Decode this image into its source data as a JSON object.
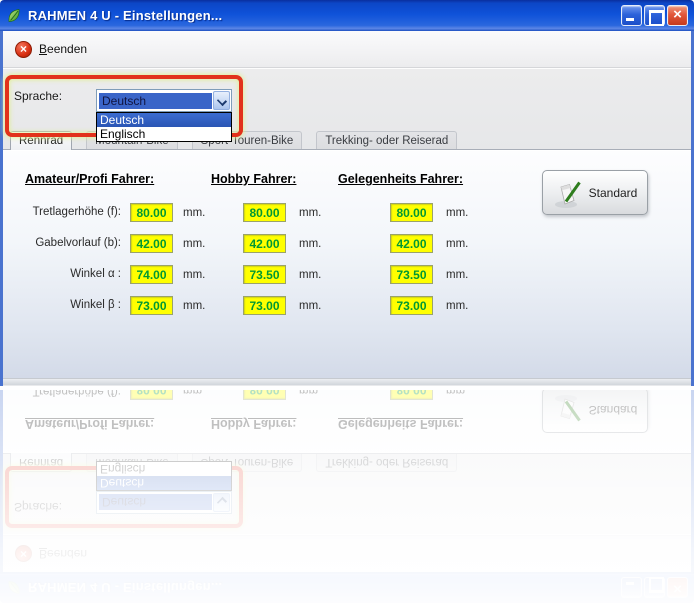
{
  "window": {
    "title": "RAHMEN 4 U - Einstellungen...",
    "controls": {
      "close_glyph": "×"
    }
  },
  "toolbar": {
    "quit_label": "Beenden",
    "quit_glyph": "×"
  },
  "language": {
    "label": "Sprache:",
    "selected": "Deutsch",
    "options": [
      {
        "label": "Deutsch",
        "highlighted": true
      },
      {
        "label": "Englisch",
        "highlighted": false
      }
    ]
  },
  "tabs": [
    {
      "label": "Rennrad",
      "active": true
    },
    {
      "label": "Mountain-Bike",
      "active": false
    },
    {
      "label": "Sport-Touren-Bike",
      "active": false
    },
    {
      "label": "Trekking- oder Reiserad",
      "active": false
    }
  ],
  "panel": {
    "columns": [
      "Amateur/Profi Fahrer:",
      "Hobby Fahrer:",
      "Gelegenheits Fahrer:"
    ],
    "rows": [
      {
        "label": "Tretlagerhöhe (f):",
        "values": [
          "80.00",
          "80.00",
          "80.00"
        ],
        "unit": "mm."
      },
      {
        "label": "Gabelvorlauf (b):",
        "values": [
          "42.00",
          "42.00",
          "42.00"
        ],
        "unit": "mm."
      },
      {
        "label": "Winkel α :",
        "values": [
          "74.00",
          "73.50",
          "73.50"
        ],
        "unit": "mm."
      },
      {
        "label": "Winkel β :",
        "values": [
          "73.00",
          "73.00",
          "73.00"
        ],
        "unit": "mm."
      }
    ],
    "standard_button": "Standard"
  },
  "colors": {
    "titlebar_blue": "#0f52d9",
    "annotation_red": "#e2321b",
    "field_yellow": "#ffff00",
    "value_green": "#009933",
    "selection_blue": "#3a65c8",
    "close_red": "#d6492a"
  }
}
